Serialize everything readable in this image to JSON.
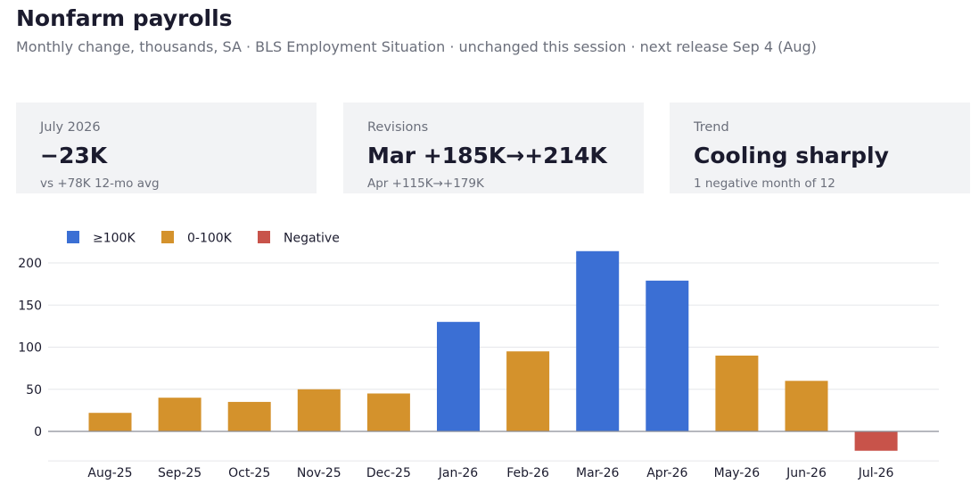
{
  "header": {
    "title": "Nonfarm payrolls",
    "subtitle": "Monthly change, thousands, SA · BLS Employment Situation · unchanged this session · next release Sep 4 (Aug)"
  },
  "cards": [
    {
      "label": "July 2026",
      "value": "−23K",
      "sub": "vs +78K 12-mo avg"
    },
    {
      "label": "Revisions",
      "value": "Mar +185K→+214K",
      "sub": "Apr +115K→+179K"
    },
    {
      "label": "Trend",
      "value": "Cooling sharply",
      "sub": "1 negative month of 12"
    }
  ],
  "chart_data": {
    "type": "bar",
    "categories": [
      "Aug-25",
      "Sep-25",
      "Oct-25",
      "Nov-25",
      "Dec-25",
      "Jan-26",
      "Feb-26",
      "Mar-26",
      "Apr-26",
      "May-26",
      "Jun-26",
      "Jul-26"
    ],
    "values": [
      22,
      40,
      35,
      50,
      45,
      130,
      95,
      214,
      179,
      90,
      60,
      -23
    ],
    "groups": [
      "mid",
      "mid",
      "mid",
      "mid",
      "mid",
      "high",
      "mid",
      "high",
      "high",
      "mid",
      "mid",
      "neg"
    ],
    "legend": [
      {
        "key": "high",
        "label": "≥100K",
        "color": "#3b6fd4"
      },
      {
        "key": "mid",
        "label": "0-100K",
        "color": "#d4922c"
      },
      {
        "key": "neg",
        "label": "Negative",
        "color": "#c8534a"
      }
    ],
    "yticks": [
      "0",
      "50",
      "100",
      "150",
      "200"
    ],
    "ylim": [
      -35,
      230
    ],
    "grid": true,
    "legend_position": "top-left"
  }
}
